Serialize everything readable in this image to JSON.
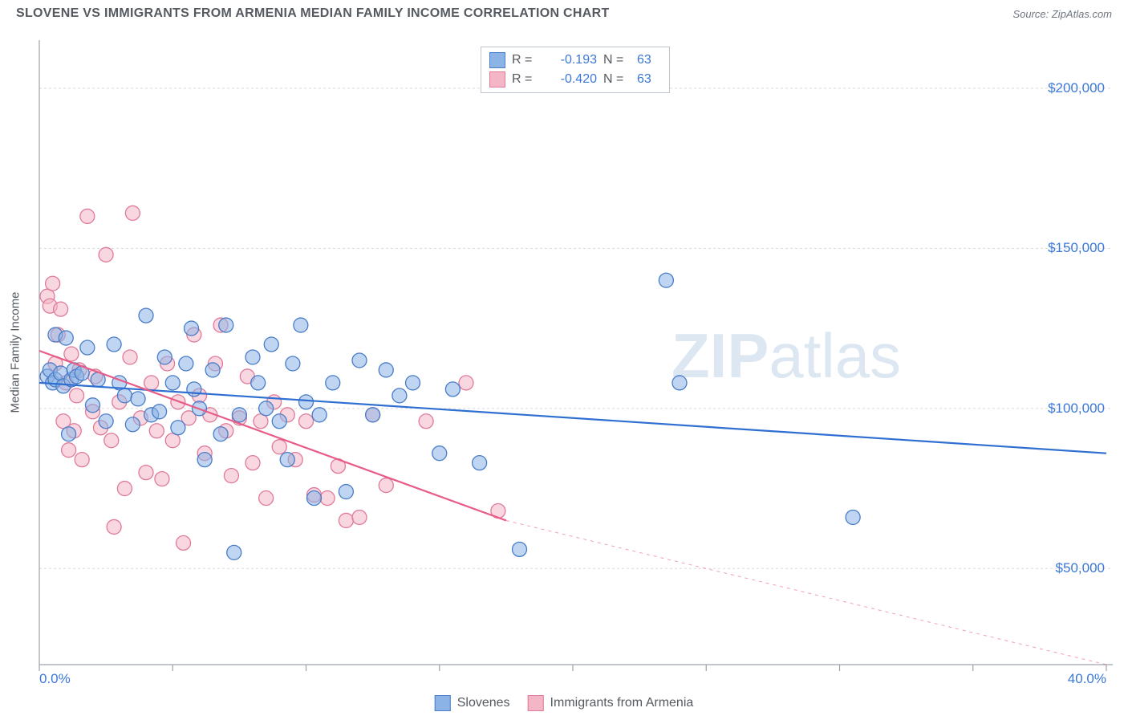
{
  "title": "SLOVENE VS IMMIGRANTS FROM ARMENIA MEDIAN FAMILY INCOME CORRELATION CHART",
  "source": "Source: ZipAtlas.com",
  "watermark": "ZIPatlas",
  "chart": {
    "type": "scatter",
    "background_color": "#ffffff",
    "grid_color": "#d9d9d9",
    "axis_line_color": "#9da3aa",
    "tick_color": "#9da3aa",
    "y_axis_label": "Median Family Income",
    "xlim": [
      0,
      40
    ],
    "ylim": [
      20000,
      215000
    ],
    "y_ticks": [
      50000,
      100000,
      150000,
      200000
    ],
    "y_tick_labels": [
      "$50,000",
      "$100,000",
      "$150,000",
      "$200,000"
    ],
    "x_ticks": [
      0,
      5,
      10,
      15,
      20,
      25,
      30,
      35,
      40
    ],
    "x_tick_labels_shown": {
      "0": "0.0%",
      "40": "40.0%"
    },
    "marker_radius": 9,
    "marker_opacity": 0.55,
    "marker_stroke_width": 1.3,
    "label_fontsize": 15,
    "tick_label_fontsize": 17,
    "tick_label_color": "#3b78d8",
    "series": [
      {
        "name": "Slovenes",
        "short": "slovenes",
        "fill_color": "#8bb3e6",
        "stroke_color": "#4a7dc7",
        "line_color": "#2f6fd1",
        "line_width": 2.2,
        "R": "-0.193",
        "N": "63",
        "trend": {
          "x1": 0,
          "y1": 108000,
          "x2": 40,
          "y2": 86000,
          "dashed_from_x": 40
        },
        "points": [
          [
            0.3,
            110000
          ],
          [
            0.4,
            112000
          ],
          [
            0.5,
            108000
          ],
          [
            0.6,
            123000
          ],
          [
            0.6,
            109000
          ],
          [
            0.8,
            111000
          ],
          [
            0.9,
            107000
          ],
          [
            1.0,
            122000
          ],
          [
            1.1,
            92000
          ],
          [
            1.2,
            109000
          ],
          [
            1.3,
            112000
          ],
          [
            1.4,
            110000
          ],
          [
            1.6,
            111000
          ],
          [
            1.8,
            119000
          ],
          [
            2.0,
            101000
          ],
          [
            2.2,
            109000
          ],
          [
            2.5,
            96000
          ],
          [
            2.8,
            120000
          ],
          [
            3.0,
            108000
          ],
          [
            3.2,
            104000
          ],
          [
            3.5,
            95000
          ],
          [
            3.7,
            103000
          ],
          [
            4.0,
            129000
          ],
          [
            4.2,
            98000
          ],
          [
            4.5,
            99000
          ],
          [
            4.7,
            116000
          ],
          [
            5.0,
            108000
          ],
          [
            5.2,
            94000
          ],
          [
            5.5,
            114000
          ],
          [
            5.7,
            125000
          ],
          [
            5.8,
            106000
          ],
          [
            6.0,
            100000
          ],
          [
            6.2,
            84000
          ],
          [
            6.5,
            112000
          ],
          [
            6.8,
            92000
          ],
          [
            7.0,
            126000
          ],
          [
            7.3,
            55000
          ],
          [
            7.5,
            98000
          ],
          [
            8.0,
            116000
          ],
          [
            8.2,
            108000
          ],
          [
            8.5,
            100000
          ],
          [
            8.7,
            120000
          ],
          [
            9.0,
            96000
          ],
          [
            9.3,
            84000
          ],
          [
            9.5,
            114000
          ],
          [
            9.8,
            126000
          ],
          [
            10.0,
            102000
          ],
          [
            10.3,
            72000
          ],
          [
            10.5,
            98000
          ],
          [
            11.0,
            108000
          ],
          [
            11.5,
            74000
          ],
          [
            12.0,
            115000
          ],
          [
            12.5,
            98000
          ],
          [
            13.0,
            112000
          ],
          [
            13.5,
            104000
          ],
          [
            14.0,
            108000
          ],
          [
            15.0,
            86000
          ],
          [
            15.5,
            106000
          ],
          [
            16.5,
            83000
          ],
          [
            18.0,
            56000
          ],
          [
            23.5,
            140000
          ],
          [
            24.0,
            108000
          ],
          [
            30.5,
            66000
          ]
        ]
      },
      {
        "name": "Immigrants from Armenia",
        "short": "armenia",
        "fill_color": "#f4b6c6",
        "stroke_color": "#e07a99",
        "line_color": "#e85c87",
        "line_width": 2.2,
        "R": "-0.420",
        "N": "63",
        "trend": {
          "x1": 0,
          "y1": 118000,
          "x2": 17.5,
          "y2": 65000,
          "dashed_from_x": 17.5,
          "dashed_to_x": 40,
          "dashed_to_y": 0
        },
        "points": [
          [
            0.3,
            135000
          ],
          [
            0.4,
            132000
          ],
          [
            0.5,
            139000
          ],
          [
            0.6,
            114000
          ],
          [
            0.7,
            123000
          ],
          [
            0.8,
            131000
          ],
          [
            0.9,
            96000
          ],
          [
            1.0,
            108000
          ],
          [
            1.1,
            87000
          ],
          [
            1.2,
            117000
          ],
          [
            1.3,
            93000
          ],
          [
            1.4,
            104000
          ],
          [
            1.5,
            112000
          ],
          [
            1.6,
            84000
          ],
          [
            1.8,
            160000
          ],
          [
            2.0,
            99000
          ],
          [
            2.1,
            110000
          ],
          [
            2.3,
            94000
          ],
          [
            2.5,
            148000
          ],
          [
            2.7,
            90000
          ],
          [
            2.8,
            63000
          ],
          [
            3.0,
            102000
          ],
          [
            3.2,
            75000
          ],
          [
            3.4,
            116000
          ],
          [
            3.5,
            161000
          ],
          [
            3.8,
            97000
          ],
          [
            4.0,
            80000
          ],
          [
            4.2,
            108000
          ],
          [
            4.4,
            93000
          ],
          [
            4.6,
            78000
          ],
          [
            4.8,
            114000
          ],
          [
            5.0,
            90000
          ],
          [
            5.2,
            102000
          ],
          [
            5.4,
            58000
          ],
          [
            5.6,
            97000
          ],
          [
            5.8,
            123000
          ],
          [
            6.0,
            104000
          ],
          [
            6.2,
            86000
          ],
          [
            6.4,
            98000
          ],
          [
            6.6,
            114000
          ],
          [
            6.8,
            126000
          ],
          [
            7.0,
            93000
          ],
          [
            7.2,
            79000
          ],
          [
            7.5,
            97000
          ],
          [
            7.8,
            110000
          ],
          [
            8.0,
            83000
          ],
          [
            8.3,
            96000
          ],
          [
            8.5,
            72000
          ],
          [
            8.8,
            102000
          ],
          [
            9.0,
            88000
          ],
          [
            9.3,
            98000
          ],
          [
            9.6,
            84000
          ],
          [
            10.0,
            96000
          ],
          [
            10.3,
            73000
          ],
          [
            10.8,
            72000
          ],
          [
            11.2,
            82000
          ],
          [
            11.5,
            65000
          ],
          [
            12.0,
            66000
          ],
          [
            12.5,
            98000
          ],
          [
            13.0,
            76000
          ],
          [
            14.5,
            96000
          ],
          [
            16.0,
            108000
          ],
          [
            17.2,
            68000
          ]
        ]
      }
    ]
  },
  "legend_bottom": {
    "items": [
      {
        "label": "Slovenes",
        "fill": "#8bb3e6",
        "stroke": "#4a7dc7"
      },
      {
        "label": "Immigrants from Armenia",
        "fill": "#f4b6c6",
        "stroke": "#e07a99"
      }
    ]
  }
}
